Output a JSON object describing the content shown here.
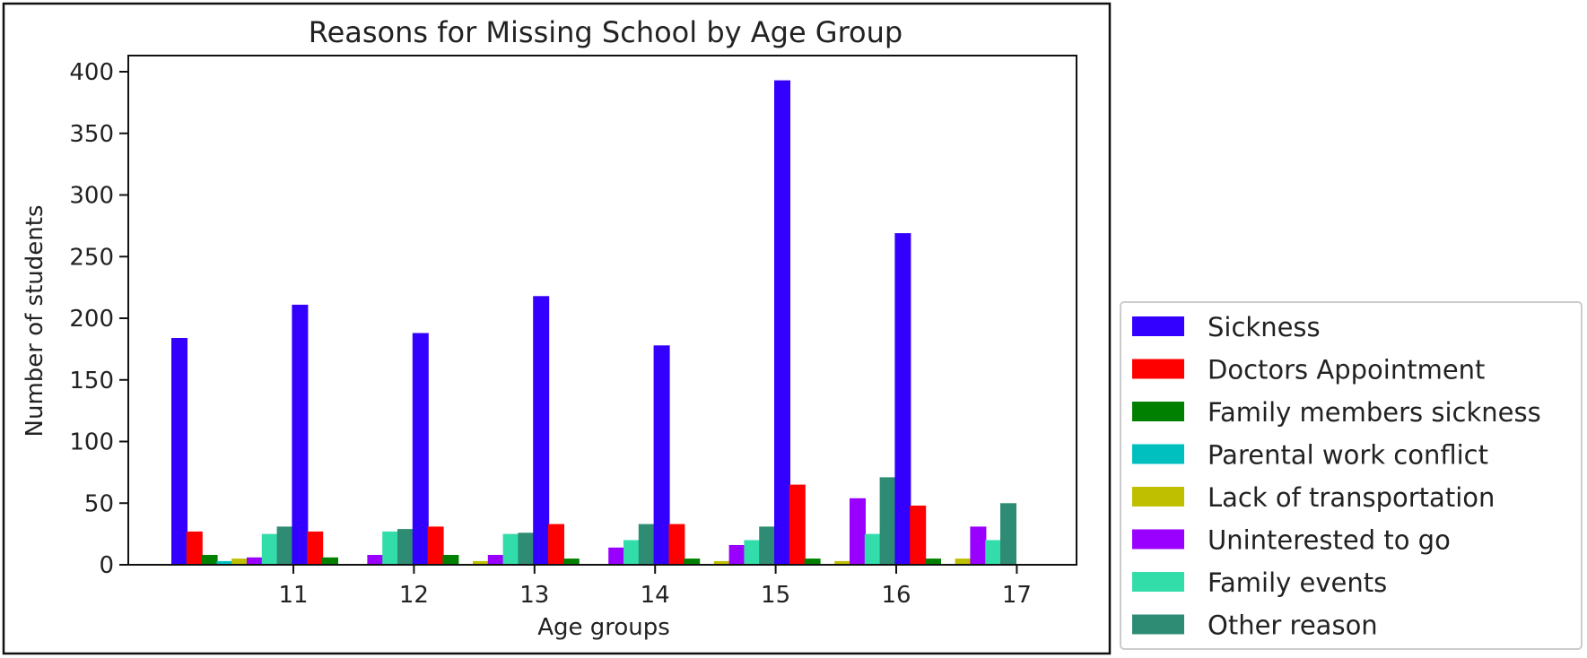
{
  "chart_data": {
    "type": "bar",
    "title": "Reasons for Missing School by Age Group",
    "xlabel": "Age groups",
    "ylabel": "Number of students",
    "ylim": [
      0,
      400
    ],
    "yticks": [
      0,
      50,
      100,
      150,
      200,
      250,
      300,
      350,
      400
    ],
    "xticks": [
      11,
      12,
      13,
      14,
      15,
      16,
      17
    ],
    "grid": false,
    "legend_position": "outside-right-bottom",
    "layout_note": "bars are drawn in one sequence with no gap between groups; age labels sit at every 8th slot",
    "series": [
      {
        "name": "Sickness",
        "color": "#3300ff",
        "values": [
          184,
          211,
          188,
          218,
          178,
          393,
          269
        ]
      },
      {
        "name": "Doctors Appointment",
        "color": "#ff0000",
        "values": [
          27,
          27,
          31,
          33,
          33,
          65,
          48
        ]
      },
      {
        "name": "Family members sickness",
        "color": "#008000",
        "values": [
          8,
          6,
          8,
          5,
          5,
          5,
          5
        ]
      },
      {
        "name": "Parental work conflict",
        "color": "#00bfbf",
        "values": [
          3,
          0,
          0,
          0,
          0,
          0,
          0
        ]
      },
      {
        "name": "Lack of transportation",
        "color": "#bfbf00",
        "values": [
          5,
          0,
          3,
          0,
          3,
          3,
          5
        ]
      },
      {
        "name": "Uninterested to go",
        "color": "#9900ff",
        "values": [
          6,
          8,
          8,
          14,
          16,
          54,
          31
        ]
      },
      {
        "name": "Family events",
        "color": "#33ddaa",
        "values": [
          25,
          27,
          25,
          20,
          20,
          25,
          20
        ]
      },
      {
        "name": "Other reason",
        "color": "#2e8b74",
        "values": [
          31,
          29,
          26,
          33,
          31,
          71,
          50
        ]
      }
    ]
  }
}
